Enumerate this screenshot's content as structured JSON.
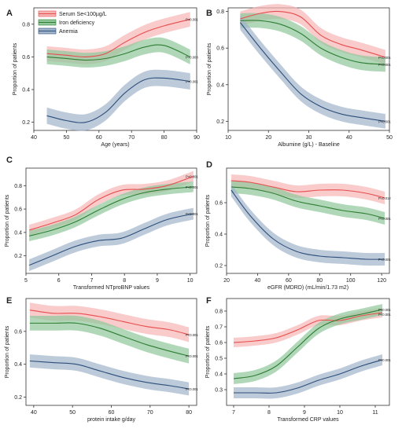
{
  "colors": {
    "serum": "#e74c4c",
    "serum_band": "#f6b5b5",
    "iron": "#2e7d32",
    "iron_band": "#8fc79a",
    "anemia": "#2d4e7a",
    "anemia_band": "#9fb3cb"
  },
  "legend": [
    {
      "key": "serum",
      "label": "Serum Se<100µg/L"
    },
    {
      "key": "iron",
      "label": "Iron deficiency"
    },
    {
      "key": "anemia",
      "label": "Anemia"
    }
  ],
  "chart_data": [
    {
      "panel": "A",
      "type": "line",
      "xlabel": "Age (years)",
      "ylabel": "Proportion of patients",
      "xlim": [
        40,
        90
      ],
      "ylim": [
        0.15,
        0.9
      ],
      "xticks": [
        40,
        50,
        60,
        70,
        80,
        90
      ],
      "yticks": [
        0.2,
        0.4,
        0.6,
        0.8
      ],
      "x": [
        44,
        50,
        56,
        62,
        68,
        74,
        80,
        88
      ],
      "series": [
        {
          "key": "serum",
          "values": [
            0.62,
            0.61,
            0.6,
            0.62,
            0.69,
            0.75,
            0.79,
            0.83
          ],
          "band": 0.045,
          "pval": "P<0.001"
        },
        {
          "key": "iron",
          "values": [
            0.6,
            0.59,
            0.58,
            0.59,
            0.62,
            0.66,
            0.67,
            0.6
          ],
          "band": 0.045,
          "pval": "P=0.008"
        },
        {
          "key": "anemia",
          "values": [
            0.24,
            0.21,
            0.2,
            0.26,
            0.38,
            0.46,
            0.47,
            0.45
          ],
          "band": 0.05,
          "pval": "P<0.001"
        }
      ]
    },
    {
      "panel": "B",
      "type": "line",
      "xlabel": "Albumine (g/L) - Baseline",
      "ylabel": "Proportion of patients",
      "xlim": [
        10,
        50
      ],
      "ylim": [
        0.15,
        0.82
      ],
      "xticks": [
        10,
        20,
        30,
        40,
        50
      ],
      "yticks": [
        0.2,
        0.4,
        0.6,
        0.8
      ],
      "x": [
        13,
        18,
        23,
        28,
        33,
        38,
        43,
        49
      ],
      "series": [
        {
          "key": "serum",
          "values": [
            0.76,
            0.79,
            0.8,
            0.77,
            0.67,
            0.62,
            0.59,
            0.55
          ],
          "band": 0.04,
          "pval": "P<0.001"
        },
        {
          "key": "iron",
          "values": [
            0.75,
            0.75,
            0.73,
            0.68,
            0.6,
            0.55,
            0.52,
            0.51
          ],
          "band": 0.04,
          "pval": "P<0.001"
        },
        {
          "key": "anemia",
          "values": [
            0.74,
            0.6,
            0.47,
            0.35,
            0.28,
            0.24,
            0.22,
            0.2
          ],
          "band": 0.04,
          "pval": "P<0.001"
        }
      ]
    },
    {
      "panel": "C",
      "type": "line",
      "xlabel": "Transformed NTproBNP values",
      "ylabel": "Proportion of patients",
      "xlim": [
        5,
        10.2
      ],
      "ylim": [
        0.05,
        0.95
      ],
      "xticks": [
        5,
        6,
        7,
        8,
        9,
        10
      ],
      "yticks": [
        0.2,
        0.4,
        0.6,
        0.8
      ],
      "x": [
        5.1,
        5.8,
        6.5,
        7.2,
        7.9,
        8.6,
        9.3,
        10.1
      ],
      "series": [
        {
          "key": "serum",
          "values": [
            0.42,
            0.48,
            0.55,
            0.68,
            0.76,
            0.77,
            0.8,
            0.88
          ],
          "band": 0.045,
          "pval": "P<0.001"
        },
        {
          "key": "iron",
          "values": [
            0.37,
            0.42,
            0.49,
            0.59,
            0.68,
            0.74,
            0.77,
            0.79
          ],
          "band": 0.045,
          "pval": "P<0.001"
        },
        {
          "key": "anemia",
          "values": [
            0.12,
            0.2,
            0.28,
            0.33,
            0.35,
            0.43,
            0.51,
            0.56
          ],
          "band": 0.05,
          "pval": "P<0.001"
        }
      ]
    },
    {
      "panel": "D",
      "type": "line",
      "xlabel": "eGFR (MDRD) (mL/min/1.73 m2)",
      "ylabel": "Proportion of patients",
      "xlim": [
        20,
        125
      ],
      "ylim": [
        0.15,
        0.82
      ],
      "xticks": [
        20,
        40,
        60,
        80,
        100,
        120
      ],
      "yticks": [
        0.2,
        0.4,
        0.6
      ],
      "x": [
        23,
        35,
        50,
        65,
        80,
        95,
        110,
        122
      ],
      "series": [
        {
          "key": "serum",
          "values": [
            0.74,
            0.73,
            0.7,
            0.67,
            0.68,
            0.68,
            0.66,
            0.63
          ],
          "band": 0.04,
          "pval": "P=0.012"
        },
        {
          "key": "iron",
          "values": [
            0.7,
            0.69,
            0.66,
            0.61,
            0.58,
            0.55,
            0.53,
            0.5
          ],
          "band": 0.04,
          "pval": "P<0.001"
        },
        {
          "key": "anemia",
          "values": [
            0.68,
            0.52,
            0.37,
            0.29,
            0.26,
            0.25,
            0.24,
            0.24
          ],
          "band": 0.04,
          "pval": "P<0.001"
        }
      ]
    },
    {
      "panel": "E",
      "type": "line",
      "xlabel": "protein intake g/day",
      "ylabel": "Proportion of patients",
      "xlim": [
        38,
        82
      ],
      "ylim": [
        0.15,
        0.8
      ],
      "xticks": [
        40,
        50,
        60,
        70,
        80
      ],
      "yticks": [
        0.2,
        0.4,
        0.6
      ],
      "x": [
        39,
        45,
        51,
        57,
        63,
        69,
        75,
        80
      ],
      "series": [
        {
          "key": "serum",
          "values": [
            0.73,
            0.71,
            0.71,
            0.69,
            0.66,
            0.63,
            0.61,
            0.58
          ],
          "band": 0.045,
          "pval": "P<0.001"
        },
        {
          "key": "iron",
          "values": [
            0.65,
            0.65,
            0.65,
            0.62,
            0.57,
            0.52,
            0.48,
            0.45
          ],
          "band": 0.045,
          "pval": "P<0.001"
        },
        {
          "key": "anemia",
          "values": [
            0.42,
            0.41,
            0.4,
            0.36,
            0.32,
            0.29,
            0.27,
            0.25
          ],
          "band": 0.04,
          "pval": "P<0.001"
        }
      ]
    },
    {
      "panel": "F",
      "type": "line",
      "xlabel": "Transformed CRP values",
      "ylabel": "Proportion of patients",
      "xlim": [
        6.8,
        11.4
      ],
      "ylim": [
        0.2,
        0.88
      ],
      "xticks": [
        7,
        8,
        9,
        10,
        11
      ],
      "yticks": [
        0.3,
        0.4,
        0.5,
        0.6,
        0.7,
        0.8
      ],
      "x": [
        7,
        7.6,
        8.2,
        8.8,
        9.4,
        10,
        10.6,
        11.2
      ],
      "series": [
        {
          "key": "serum",
          "values": [
            0.6,
            0.61,
            0.63,
            0.68,
            0.74,
            0.74,
            0.77,
            0.79
          ],
          "band": 0.03,
          "pval": "P<0.001"
        },
        {
          "key": "iron",
          "values": [
            0.37,
            0.39,
            0.45,
            0.57,
            0.69,
            0.75,
            0.78,
            0.81
          ],
          "band": 0.035,
          "pval": "P<0.001"
        },
        {
          "key": "anemia",
          "values": [
            0.28,
            0.28,
            0.28,
            0.31,
            0.36,
            0.4,
            0.45,
            0.49
          ],
          "band": 0.035,
          "pval": "P<0.001"
        }
      ]
    }
  ]
}
